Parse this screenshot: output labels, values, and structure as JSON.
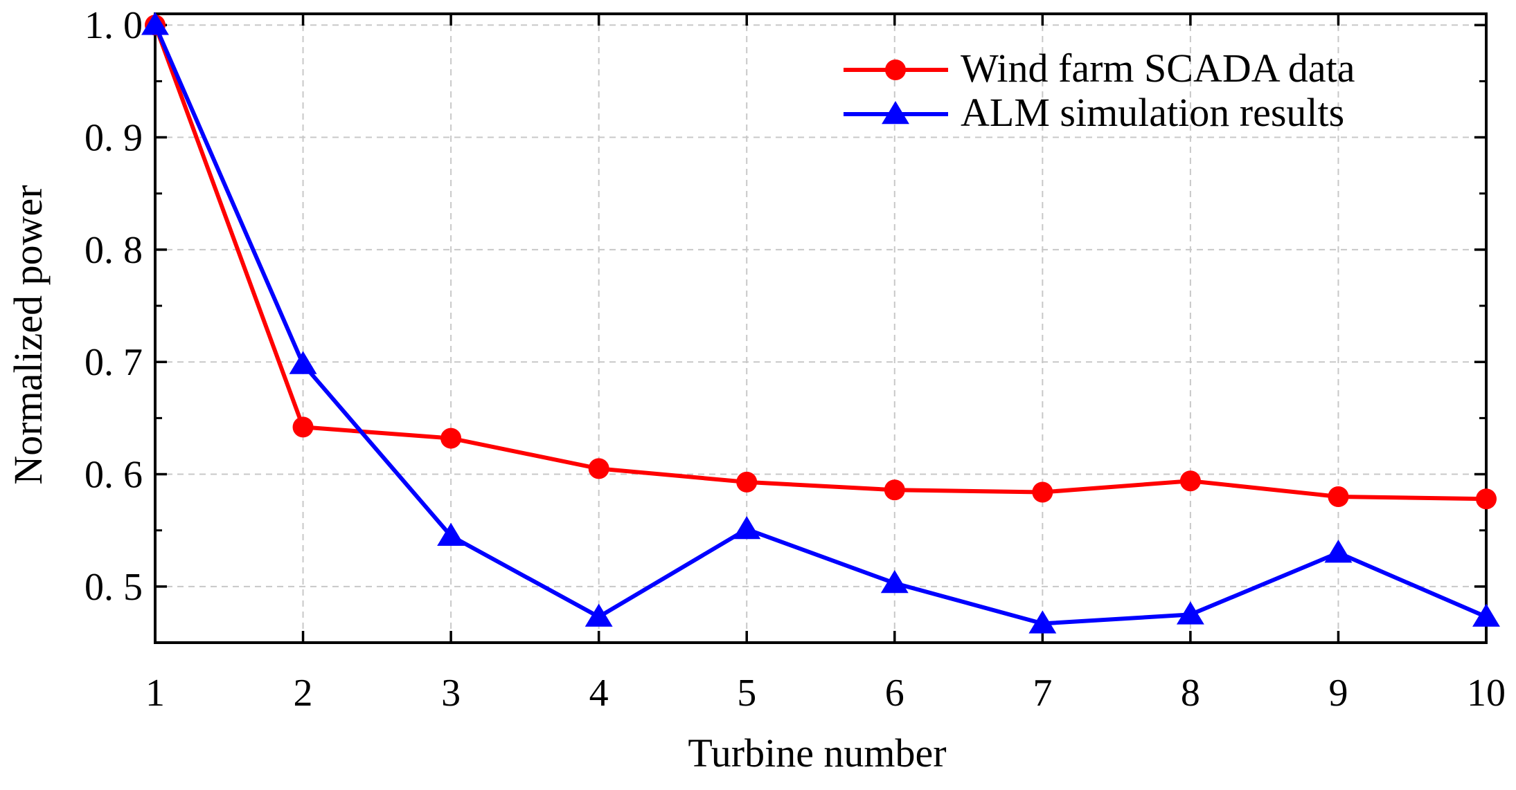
{
  "chart_data": {
    "type": "line",
    "title": "",
    "xlabel": "Turbine number",
    "ylabel": "Normalized power",
    "x": [
      1,
      2,
      3,
      4,
      5,
      6,
      7,
      8,
      9,
      10
    ],
    "xlim": [
      1,
      10
    ],
    "ylim": [
      0.45,
      1.0
    ],
    "x_ticks": [
      1,
      2,
      3,
      4,
      5,
      6,
      7,
      8,
      9,
      10
    ],
    "x_tick_labels": [
      "1",
      "2",
      "3",
      "4",
      "5",
      "6",
      "7",
      "8",
      "9",
      "10"
    ],
    "y_ticks": [
      0.5,
      0.6,
      0.7,
      0.8,
      0.9,
      1.0
    ],
    "y_tick_labels": [
      "0. 5",
      "0. 6",
      "0. 7",
      "0. 8",
      "0. 9",
      "1. 0"
    ],
    "grid": true,
    "legend_position": "top-right",
    "series": [
      {
        "name": "Wind farm SCADA data",
        "color": "#ff0000",
        "marker": "circle",
        "values": [
          1.0,
          0.642,
          0.632,
          0.605,
          0.593,
          0.586,
          0.584,
          0.594,
          0.58,
          0.578
        ]
      },
      {
        "name": "ALM simulation results",
        "color": "#0000ff",
        "marker": "triangle",
        "values": [
          1.0,
          0.698,
          0.545,
          0.473,
          0.551,
          0.503,
          0.467,
          0.475,
          0.53,
          0.473
        ]
      }
    ]
  }
}
